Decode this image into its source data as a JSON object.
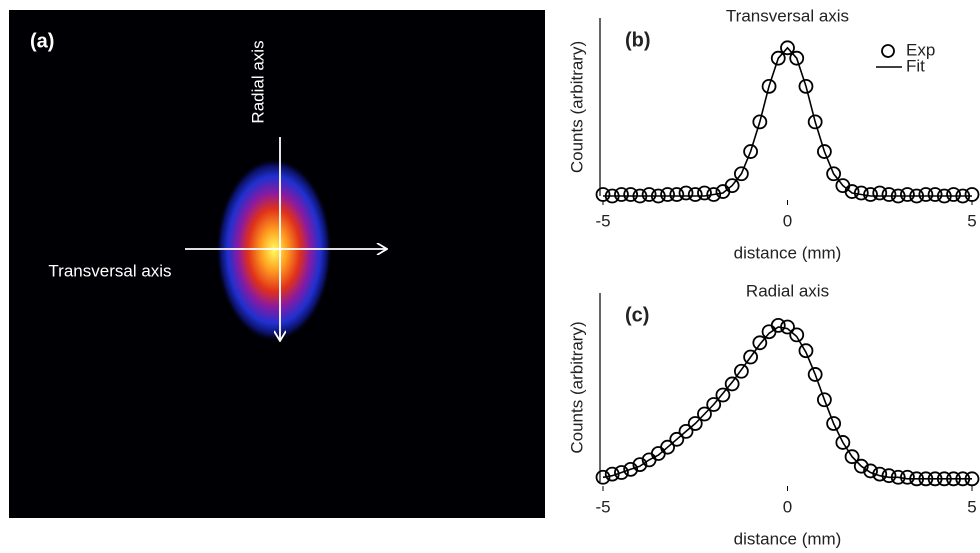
{
  "image_panel": {
    "label": "(a)",
    "vertical_arrow_label": "Radial axis",
    "horizontal_arrow_label": "Transversal axis"
  },
  "chart_data": [
    {
      "type": "scatter",
      "panel_label": "(b)",
      "title": "Transversal axis",
      "xlabel": "distance (mm)",
      "ylabel": "Counts (arbitrary)",
      "x": [
        -5,
        -4.75,
        -4.5,
        -4.25,
        -4,
        -3.75,
        -3.5,
        -3.25,
        -3,
        -2.75,
        -2.5,
        -2.25,
        -2,
        -1.75,
        -1.5,
        -1.25,
        -1,
        -0.75,
        -0.5,
        -0.25,
        0,
        0.25,
        0.5,
        0.75,
        1,
        1.25,
        1.5,
        1.75,
        2,
        2.25,
        2.5,
        2.75,
        3,
        3.25,
        3.5,
        3.75,
        4,
        4.25,
        4.5,
        4.75,
        5
      ],
      "series": [
        {
          "name": "Exp",
          "type": "scatter",
          "color": "#000000",
          "values": [
            0.01,
            0,
            0.01,
            0.01,
            0,
            0.01,
            0,
            0.01,
            0.01,
            0.02,
            0.01,
            0.02,
            0.01,
            0.03,
            0.07,
            0.15,
            0.3,
            0.5,
            0.74,
            0.93,
            1,
            0.93,
            0.74,
            0.5,
            0.3,
            0.15,
            0.07,
            0.03,
            0.02,
            0.01,
            0.02,
            0.01,
            0,
            0.01,
            0,
            0.01,
            0.01,
            0,
            0.01,
            0,
            0.01
          ]
        },
        {
          "name": "Fit",
          "type": "line",
          "color": "#000000",
          "values": [
            0,
            0,
            0,
            0,
            0,
            0,
            0,
            0,
            0,
            0,
            0,
            0,
            0.01,
            0.02,
            0.07,
            0.15,
            0.3,
            0.5,
            0.74,
            0.93,
            1,
            0.93,
            0.74,
            0.5,
            0.3,
            0.15,
            0.07,
            0.02,
            0.01,
            0,
            0,
            0,
            0,
            0,
            0,
            0,
            0,
            0,
            0,
            0,
            0
          ]
        }
      ],
      "xlim": [
        -5,
        5
      ],
      "xticks": [
        -5,
        0,
        5
      ],
      "ylim": [
        0,
        1.1
      ],
      "legend": "upper right"
    },
    {
      "type": "scatter",
      "panel_label": "(c)",
      "title": "Radial axis",
      "xlabel": "distance (mm)",
      "ylabel": "Counts (arbitrary)",
      "x": [
        -5,
        -4.75,
        -4.5,
        -4.25,
        -4,
        -3.75,
        -3.5,
        -3.25,
        -3,
        -2.75,
        -2.5,
        -2.25,
        -2,
        -1.75,
        -1.5,
        -1.25,
        -1,
        -0.75,
        -0.5,
        -0.25,
        0,
        0.25,
        0.5,
        0.75,
        1,
        1.25,
        1.5,
        1.75,
        2,
        2.25,
        2.5,
        2.75,
        3,
        3.25,
        3.5,
        3.75,
        4,
        4.25,
        4.5,
        4.75,
        5
      ],
      "series": [
        {
          "name": "Exp",
          "type": "scatter",
          "color": "#000000",
          "values": [
            0.03,
            0.05,
            0.06,
            0.08,
            0.11,
            0.14,
            0.18,
            0.22,
            0.27,
            0.32,
            0.37,
            0.43,
            0.49,
            0.55,
            0.62,
            0.7,
            0.79,
            0.88,
            0.95,
            0.99,
            0.98,
            0.93,
            0.83,
            0.68,
            0.52,
            0.37,
            0.25,
            0.16,
            0.1,
            0.07,
            0.05,
            0.04,
            0.03,
            0.03,
            0.02,
            0.02,
            0.02,
            0.02,
            0.02,
            0.02,
            0.02
          ]
        },
        {
          "name": "Fit",
          "type": "line",
          "color": "#000000",
          "values": [
            0.03,
            0.04,
            0.06,
            0.08,
            0.1,
            0.14,
            0.17,
            0.22,
            0.27,
            0.32,
            0.37,
            0.43,
            0.49,
            0.56,
            0.63,
            0.71,
            0.79,
            0.87,
            0.94,
            0.98,
            0.97,
            0.92,
            0.82,
            0.68,
            0.52,
            0.37,
            0.25,
            0.16,
            0.1,
            0.06,
            0.04,
            0.03,
            0.03,
            0.02,
            0.02,
            0.02,
            0.02,
            0.02,
            0.02,
            0.02,
            0.02
          ]
        }
      ],
      "xlim": [
        -5,
        5
      ],
      "xticks": [
        -5,
        0,
        5
      ],
      "ylim": [
        0,
        1.1
      ]
    }
  ]
}
